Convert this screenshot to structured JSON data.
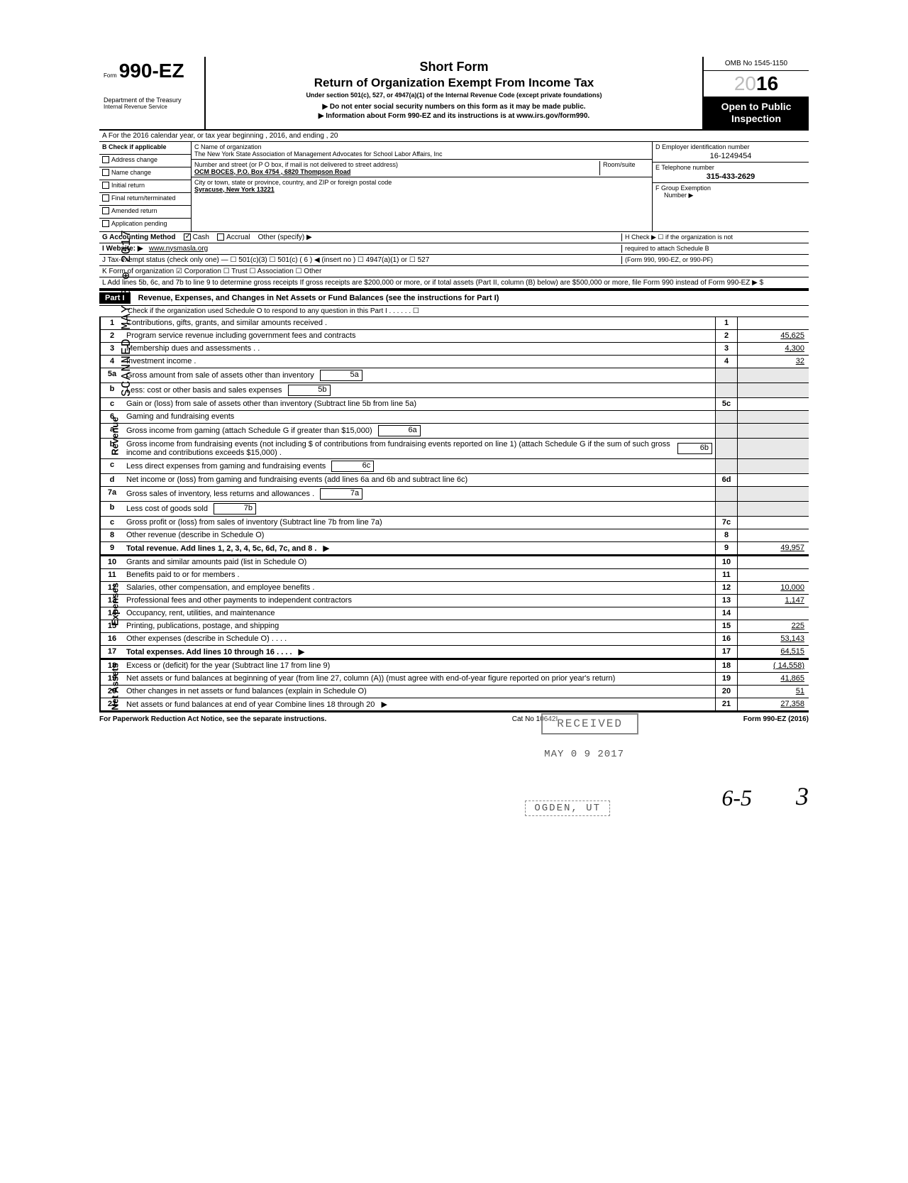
{
  "header": {
    "form_prefix": "Form",
    "form_number": "990-EZ",
    "short_form": "Short Form",
    "title": "Return of Organization Exempt From Income Tax",
    "under_section": "Under section 501(c), 527, or 4947(a)(1) of the Internal Revenue Code (except private foundations)",
    "arrow_note": "▶ Do not enter social security numbers on this form as it may be made public.",
    "info_note": "▶ Information about Form 990-EZ and its instructions is at www.irs.gov/form990.",
    "dept": "Department of the Treasury",
    "irs": "Internal Revenue Service",
    "omb": "OMB No 1545-1150",
    "year_ghost": "20",
    "year_bold": "16",
    "open_public": "Open to Public Inspection"
  },
  "section_a": "A  For the 2016 calendar year, or tax year beginning                                              , 2016, and ending                                    , 20",
  "checks": {
    "b_label": "B  Check if applicable",
    "items": [
      "Address change",
      "Name change",
      "Initial return",
      "Final return/terminated",
      "Amended return",
      "Application pending"
    ]
  },
  "org": {
    "c_label": "C  Name of organization",
    "name": "The New York State Association of Management Advocates for School Labor Affairs, Inc",
    "addr_label": "Number and street (or P O  box, if mail is not delivered to street address)",
    "room_label": "Room/suite",
    "addr": "OCM BOCES, P.O. Box 4754 , 6820 Thompson Road",
    "city_label": "City or town, state or province, country, and ZIP or foreign postal code",
    "city": "Syracuse, New York  13221"
  },
  "right_info": {
    "d_label": "D Employer identification number",
    "ein": "16-1249454",
    "e_label": "E Telephone number",
    "phone": "315-433-2629",
    "f_label": "F Group Exemption",
    "f_num": "Number ▶"
  },
  "line_g": {
    "label": "G  Accounting Method",
    "cash": "Cash",
    "accrual": "Accrual",
    "other": "Other (specify) ▶",
    "h_label": "H  Check ▶ ☐ if the organization is not",
    "h_sub": "required to attach Schedule B",
    "h_sub2": "(Form 990, 990-EZ, or 990-PF)"
  },
  "website": {
    "label": "I   Website: ▶",
    "val": "www.nysmasla.org"
  },
  "tax_exempt": "J  Tax-exempt status (check only one) —  ☐ 501(c)(3)     ☐ 501(c) (  6  ) ◀ (insert no )  ☐ 4947(a)(1) or   ☐ 527",
  "form_org": "K  Form of organization     ☑ Corporation     ☐ Trust             ☐ Association       ☐ Other",
  "line_l": "L  Add lines 5b, 6c, and 7b to line 9 to determine gross receipts  If gross receipts are $200,000 or more, or if total assets (Part II, column (B) below) are $500,000 or more, file Form 990 instead of Form 990-EZ            ▶   $",
  "part1": {
    "label": "Part I",
    "title": "Revenue, Expenses, and Changes in Net Assets or Fund Balances (see the instructions for Part I)",
    "check_line": "Check if the organization used Schedule O to respond to any question in this Part I  .  .      .  .  .  .    ☐"
  },
  "revenue_label": "Revenue",
  "expenses_label": "Expenses",
  "netassets_label": "Net Assets",
  "rows": [
    {
      "n": "1",
      "d": "Contributions, gifts, grants, and similar amounts received .",
      "rn": "1",
      "v": ""
    },
    {
      "n": "2",
      "d": "Program service revenue including government fees and contracts",
      "rn": "2",
      "v": "45,625"
    },
    {
      "n": "3",
      "d": "Membership dues and assessments .  .",
      "rn": "3",
      "v": "4,300"
    },
    {
      "n": "4",
      "d": "Investment income    .",
      "rn": "4",
      "v": "32"
    },
    {
      "n": "5a",
      "d": "Gross amount from sale of assets other than inventory",
      "inner": "5a",
      "shaded": true
    },
    {
      "n": "b",
      "d": "Less: cost or other basis and sales expenses",
      "inner": "5b",
      "shaded": true
    },
    {
      "n": "c",
      "d": "Gain or (loss) from sale of assets other than inventory (Subtract line 5b from line 5a)",
      "rn": "5c",
      "v": ""
    },
    {
      "n": "6",
      "d": "Gaming and fundraising events",
      "shaded": true
    },
    {
      "n": "a",
      "d": "Gross income from gaming (attach Schedule G if greater than $15,000)",
      "inner": "6a",
      "shaded": true
    },
    {
      "n": "b",
      "d": "Gross income from fundraising events (not including  $              of contributions from fundraising events reported on line 1) (attach Schedule G if the sum of such gross income and contributions exceeds $15,000) .",
      "inner": "6b",
      "shaded": true
    },
    {
      "n": "c",
      "d": "Less  direct expenses from gaming and fundraising events",
      "inner": "6c",
      "shaded": true
    },
    {
      "n": "d",
      "d": "Net income or (loss) from gaming and fundraising events (add lines 6a and 6b and subtract line 6c)",
      "rn": "6d",
      "v": ""
    },
    {
      "n": "7a",
      "d": "Gross sales of inventory, less returns and allowances  .",
      "inner": "7a",
      "shaded": true
    },
    {
      "n": "b",
      "d": "Less  cost of goods sold",
      "inner": "7b",
      "shaded": true
    },
    {
      "n": "c",
      "d": "Gross profit or (loss) from sales of inventory (Subtract line 7b from line 7a)",
      "rn": "7c",
      "v": ""
    },
    {
      "n": "8",
      "d": "Other revenue (describe in Schedule O)",
      "rn": "8",
      "v": ""
    },
    {
      "n": "9",
      "d": "Total revenue. Add lines 1, 2, 3, 4, 5c, 6d, 7c, and 8   .",
      "rn": "9",
      "v": "49,957",
      "bold": true,
      "arrow": true
    }
  ],
  "exp_rows": [
    {
      "n": "10",
      "d": "Grants and similar amounts paid (list in Schedule O)",
      "rn": "10",
      "v": ""
    },
    {
      "n": "11",
      "d": "Benefits paid to or for members   .",
      "rn": "11",
      "v": ""
    },
    {
      "n": "12",
      "d": "Salaries, other compensation, and employee benefits  .",
      "rn": "12",
      "v": "10,000"
    },
    {
      "n": "13",
      "d": "Professional fees and other payments to independent contractors",
      "rn": "13",
      "v": "1,147"
    },
    {
      "n": "14",
      "d": "Occupancy, rent, utilities, and maintenance",
      "rn": "14",
      "v": ""
    },
    {
      "n": "15",
      "d": "Printing, publications, postage, and shipping",
      "rn": "15",
      "v": "225"
    },
    {
      "n": "16",
      "d": "Other expenses (describe in Schedule O)  .  .  .  .",
      "rn": "16",
      "v": "53,143"
    },
    {
      "n": "17",
      "d": "Total expenses. Add lines 10 through 16      .  .  .  .",
      "rn": "17",
      "v": "64,515",
      "bold": true,
      "arrow": true
    }
  ],
  "na_rows": [
    {
      "n": "18",
      "d": "Excess or (deficit) for the year (Subtract line 17 from line 9)",
      "rn": "18",
      "v": "( 14,558)"
    },
    {
      "n": "19",
      "d": "Net assets or fund balances at beginning of year (from line 27, column (A)) (must agree with end-of-year figure reported on prior year's return)",
      "rn": "19",
      "v": "41,865"
    },
    {
      "n": "20",
      "d": "Other changes in net assets or fund balances (explain in Schedule O)",
      "rn": "20",
      "v": "51"
    },
    {
      "n": "21",
      "d": "Net assets or fund balances at end of year  Combine lines 18 through 20",
      "rn": "21",
      "v": "27,358",
      "arrow": true
    }
  ],
  "footer": {
    "left": "For Paperwork Reduction Act Notice, see the separate instructions.",
    "mid": "Cat  No  10642I",
    "right": "Form 990-EZ (2016)"
  },
  "stamps": {
    "scanned": "SCANNED MAY 8 ⊕ 2017",
    "received": "RECEIVED",
    "date": "MAY 0 9 2017",
    "ogden": "OGDEN, UT",
    "hand1": "6-5",
    "hand2": "3"
  }
}
